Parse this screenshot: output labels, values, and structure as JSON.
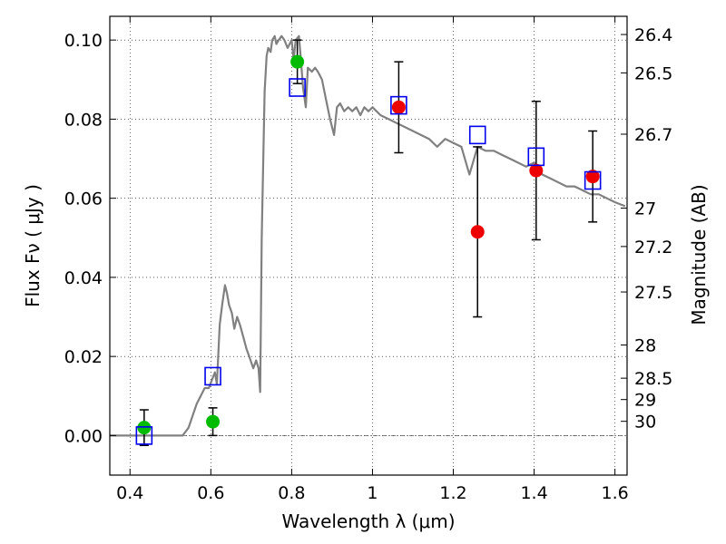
{
  "chart_data": {
    "type": "line",
    "xlabel": "Wavelength  λ (μm)",
    "ylabel": "Flux  Fν  ( μJy )",
    "ylabel_right": "Magnitude (AB)",
    "xlim": [
      0.35,
      1.63
    ],
    "ylim": [
      -0.01,
      0.106
    ],
    "grid": true,
    "x_ticks": [
      {
        "value": 0.4,
        "label": "0.4"
      },
      {
        "value": 0.6,
        "label": "0.6"
      },
      {
        "value": 0.8,
        "label": "0.8"
      },
      {
        "value": 1.0,
        "label": "1"
      },
      {
        "value": 1.2,
        "label": "1.2"
      },
      {
        "value": 1.4,
        "label": "1.4"
      },
      {
        "value": 1.6,
        "label": "1.6"
      }
    ],
    "y_ticks": [
      {
        "value": 0.0,
        "label": "0.00"
      },
      {
        "value": 0.02,
        "label": "0.02"
      },
      {
        "value": 0.04,
        "label": "0.04"
      },
      {
        "value": 0.06,
        "label": "0.06"
      },
      {
        "value": 0.08,
        "label": "0.08"
      },
      {
        "value": 0.1,
        "label": "0.10"
      }
    ],
    "right_ticks": [
      {
        "flux": 0.1014,
        "label": "26.4"
      },
      {
        "flux": 0.0917,
        "label": "26.5"
      },
      {
        "flux": 0.0762,
        "label": "26.7"
      },
      {
        "flux": 0.0575,
        "label": "27"
      },
      {
        "flux": 0.0478,
        "label": "27.2"
      },
      {
        "flux": 0.0363,
        "label": "27.5"
      },
      {
        "flux": 0.0229,
        "label": "28"
      },
      {
        "flux": 0.0145,
        "label": "28.5"
      },
      {
        "flux": 0.0091,
        "label": "29"
      },
      {
        "flux": 0.0036,
        "label": "30"
      }
    ],
    "colors": {
      "model": "#808080",
      "green": "#00bb00",
      "red": "#ee0000",
      "blue": "#0000ee",
      "errorbar": "#000000"
    },
    "series": [
      {
        "kind": "model",
        "x": [
          0.35,
          0.53,
          0.545,
          0.565,
          0.585,
          0.595,
          0.61,
          0.615,
          0.622,
          0.628,
          0.635,
          0.64,
          0.645,
          0.652,
          0.658,
          0.665,
          0.672,
          0.68,
          0.688,
          0.695,
          0.705,
          0.712,
          0.718,
          0.722,
          0.726,
          0.733,
          0.738,
          0.742,
          0.748,
          0.752,
          0.758,
          0.762,
          0.768,
          0.775,
          0.782,
          0.79,
          0.8,
          0.805,
          0.81,
          0.818,
          0.823,
          0.828,
          0.835,
          0.84,
          0.85,
          0.858,
          0.865,
          0.875,
          0.885,
          0.895,
          0.905,
          0.912,
          0.92,
          0.93,
          0.94,
          0.95,
          0.96,
          0.97,
          0.98,
          0.99,
          1.0,
          1.02,
          1.04,
          1.06,
          1.08,
          1.1,
          1.12,
          1.14,
          1.16,
          1.18,
          1.2,
          1.22,
          1.24,
          1.26,
          1.28,
          1.3,
          1.32,
          1.34,
          1.36,
          1.38,
          1.4,
          1.42,
          1.44,
          1.46,
          1.48,
          1.5,
          1.52,
          1.54,
          1.56,
          1.58,
          1.6,
          1.625
        ],
        "y": [
          0.0,
          0.0,
          0.002,
          0.008,
          0.012,
          0.012,
          0.016,
          0.013,
          0.028,
          0.033,
          0.038,
          0.036,
          0.033,
          0.031,
          0.027,
          0.03,
          0.028,
          0.025,
          0.022,
          0.02,
          0.017,
          0.019,
          0.017,
          0.011,
          0.05,
          0.087,
          0.096,
          0.098,
          0.097,
          0.1,
          0.101,
          0.099,
          0.1,
          0.101,
          0.1,
          0.098,
          0.1,
          0.095,
          0.1,
          0.101,
          0.095,
          0.088,
          0.083,
          0.093,
          0.092,
          0.093,
          0.092,
          0.09,
          0.085,
          0.08,
          0.076,
          0.083,
          0.084,
          0.082,
          0.083,
          0.082,
          0.083,
          0.081,
          0.083,
          0.082,
          0.083,
          0.081,
          0.08,
          0.079,
          0.078,
          0.077,
          0.076,
          0.075,
          0.073,
          0.075,
          0.074,
          0.073,
          0.066,
          0.073,
          0.072,
          0.072,
          0.071,
          0.07,
          0.069,
          0.068,
          0.069,
          0.066,
          0.065,
          0.064,
          0.063,
          0.063,
          0.062,
          0.061,
          0.061,
          0.06,
          0.059,
          0.058
        ]
      },
      {
        "kind": "points",
        "marker": "circle",
        "color": "green",
        "points": [
          {
            "x": 0.435,
            "y": 0.002,
            "yerr": 0.0045
          },
          {
            "x": 0.605,
            "y": 0.0035,
            "yerr": 0.0035
          },
          {
            "x": 0.814,
            "y": 0.0945,
            "yerr": 0.0055
          }
        ]
      },
      {
        "kind": "points",
        "marker": "circle",
        "color": "red",
        "points": [
          {
            "x": 1.065,
            "y": 0.083,
            "yerr": 0.0115
          },
          {
            "x": 1.26,
            "y": 0.0515,
            "yerr": 0.0215
          },
          {
            "x": 1.405,
            "y": 0.067,
            "yerr": 0.0175
          },
          {
            "x": 1.545,
            "y": 0.0655,
            "yerr": 0.0115
          }
        ]
      },
      {
        "kind": "points",
        "marker": "square",
        "color": "blue",
        "points": [
          {
            "x": 0.435,
            "y": 0.0
          },
          {
            "x": 0.605,
            "y": 0.015
          },
          {
            "x": 0.814,
            "y": 0.088
          },
          {
            "x": 1.065,
            "y": 0.0835
          },
          {
            "x": 1.26,
            "y": 0.076
          },
          {
            "x": 1.405,
            "y": 0.0705
          },
          {
            "x": 1.545,
            "y": 0.0645
          }
        ]
      }
    ]
  }
}
